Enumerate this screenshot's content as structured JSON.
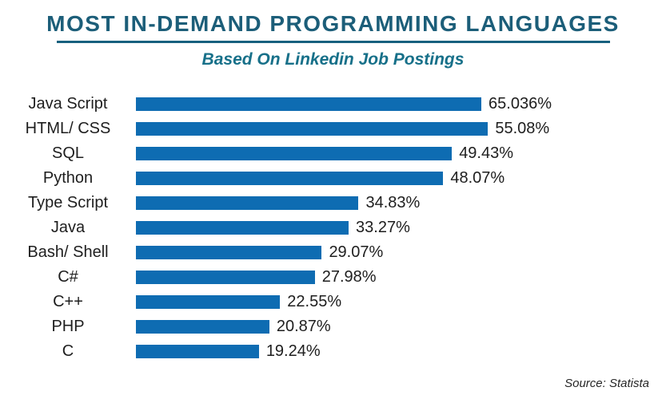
{
  "header": {
    "title": "MOST IN-DEMAND PROGRAMMING LANGUAGES",
    "subtitle": "Based On Linkedin Job Postings"
  },
  "source": {
    "label": "Source: Statista"
  },
  "colors": {
    "bar": "#0e6cb2",
    "title": "#1c5e79",
    "subtitle": "#177089",
    "underline": "#17607e",
    "text": "#1e1e1e"
  },
  "chart_data": {
    "type": "bar",
    "orientation": "horizontal",
    "title": "MOST IN-DEMAND PROGRAMMING LANGUAGES",
    "subtitle": "Based On Linkedin Job Postings",
    "categories": [
      "Java Script",
      "HTML/ CSS",
      "SQL",
      "Python",
      "Type Script",
      "Java",
      "Bash/ Shell",
      "C#",
      "C++",
      "PHP",
      "C"
    ],
    "values": [
      65.036,
      55.08,
      49.43,
      48.07,
      34.83,
      33.27,
      29.07,
      27.98,
      22.55,
      20.87,
      19.24
    ],
    "value_labels": [
      "65.036%",
      "55.08%",
      "49.43%",
      "48.07%",
      "34.83%",
      "33.27%",
      "29.07%",
      "27.98%",
      "22.55%",
      "20.87%",
      "19.24%"
    ],
    "unit": "%",
    "xlim": [
      0,
      65.036
    ],
    "grid": false,
    "legend": false,
    "value_label_position": "right-of-bar",
    "source": "Source: Statista"
  }
}
